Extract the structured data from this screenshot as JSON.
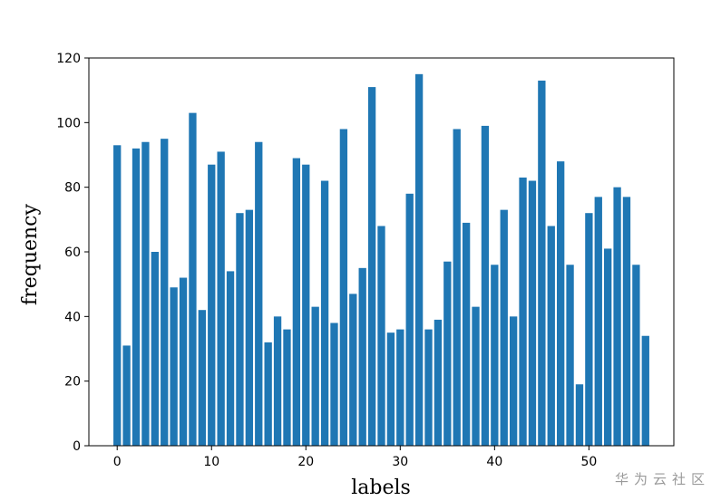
{
  "chart_data": {
    "type": "bar",
    "xlabel": "labels",
    "ylabel": "frequency",
    "xlim": [
      -3,
      59
    ],
    "ylim": [
      0,
      120
    ],
    "xticks": [
      0,
      10,
      20,
      30,
      40,
      50
    ],
    "yticks": [
      0,
      20,
      40,
      60,
      80,
      100,
      120
    ],
    "bar_color": "#1f77b4",
    "grid": false,
    "categories": [
      0,
      1,
      2,
      3,
      4,
      5,
      6,
      7,
      8,
      9,
      10,
      11,
      12,
      13,
      14,
      15,
      16,
      17,
      18,
      19,
      20,
      21,
      22,
      23,
      24,
      25,
      26,
      27,
      28,
      29,
      30,
      31,
      32,
      33,
      34,
      35,
      36,
      37,
      38,
      39,
      40,
      41,
      42,
      43,
      44,
      45,
      46,
      47,
      48,
      49,
      50,
      51,
      52,
      53,
      54,
      55,
      56
    ],
    "values": [
      93,
      31,
      92,
      94,
      60,
      95,
      49,
      52,
      103,
      42,
      87,
      91,
      54,
      72,
      73,
      94,
      32,
      40,
      36,
      89,
      87,
      43,
      82,
      38,
      98,
      47,
      55,
      111,
      68,
      35,
      36,
      78,
      115,
      36,
      39,
      57,
      98,
      69,
      43,
      99,
      56,
      73,
      40,
      83,
      82,
      113,
      68,
      88,
      56,
      19,
      72,
      77,
      61,
      80,
      77,
      56,
      34
    ]
  },
  "watermark": "华为云社区"
}
